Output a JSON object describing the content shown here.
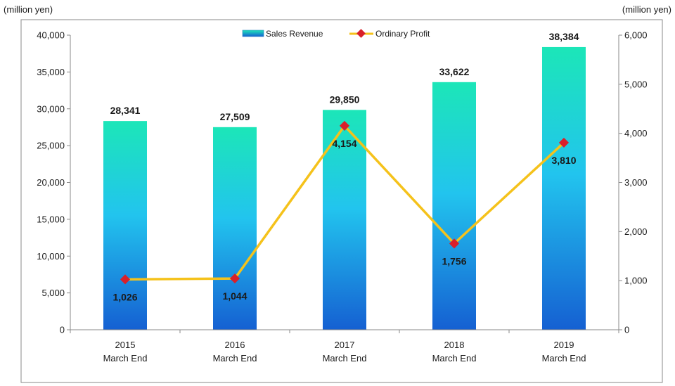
{
  "chart_data": {
    "type": "bar",
    "left_unit": "(million yen)",
    "right_unit": "(million yen)",
    "categories": [
      [
        "2015",
        "March End"
      ],
      [
        "2016",
        "March End"
      ],
      [
        "2017",
        "March End"
      ],
      [
        "2018",
        "March End"
      ],
      [
        "2019",
        "March End"
      ]
    ],
    "series": [
      {
        "name": "Sales Revenue",
        "type": "bar",
        "axis": "left",
        "values": [
          28341,
          27509,
          29850,
          33622,
          38384
        ],
        "labels": [
          "28,341",
          "27,509",
          "29,850",
          "33,622",
          "38,384"
        ],
        "colors": {
          "top": "#1ce6b8",
          "middle": "#22c4ee",
          "bottom": "#1560d2"
        }
      },
      {
        "name": "Ordinary Profit",
        "type": "line",
        "axis": "right",
        "values": [
          1026,
          1044,
          4154,
          1756,
          3810
        ],
        "labels": [
          "1,026",
          "1,044",
          "4,154",
          "1,756",
          "3,810"
        ],
        "line_color": "#f5c21b",
        "marker_color": "#d9202a"
      }
    ],
    "left_axis": {
      "ylim": [
        0,
        40000
      ],
      "ticks": [
        0,
        5000,
        10000,
        15000,
        20000,
        25000,
        30000,
        35000,
        40000
      ],
      "tick_labels": [
        "0",
        "5,000",
        "10,000",
        "15,000",
        "20,000",
        "25,000",
        "30,000",
        "35,000",
        "40,000"
      ]
    },
    "right_axis": {
      "ylim": [
        0,
        6000
      ],
      "ticks": [
        0,
        1000,
        2000,
        3000,
        4000,
        5000,
        6000
      ],
      "tick_labels": [
        "0",
        "1,000",
        "2,000",
        "3,000",
        "4,000",
        "5,000",
        "6,000"
      ]
    },
    "grid": false,
    "legend": "top-center",
    "border_color": "#8a8a8a",
    "text_color": "#1a1a1a"
  }
}
